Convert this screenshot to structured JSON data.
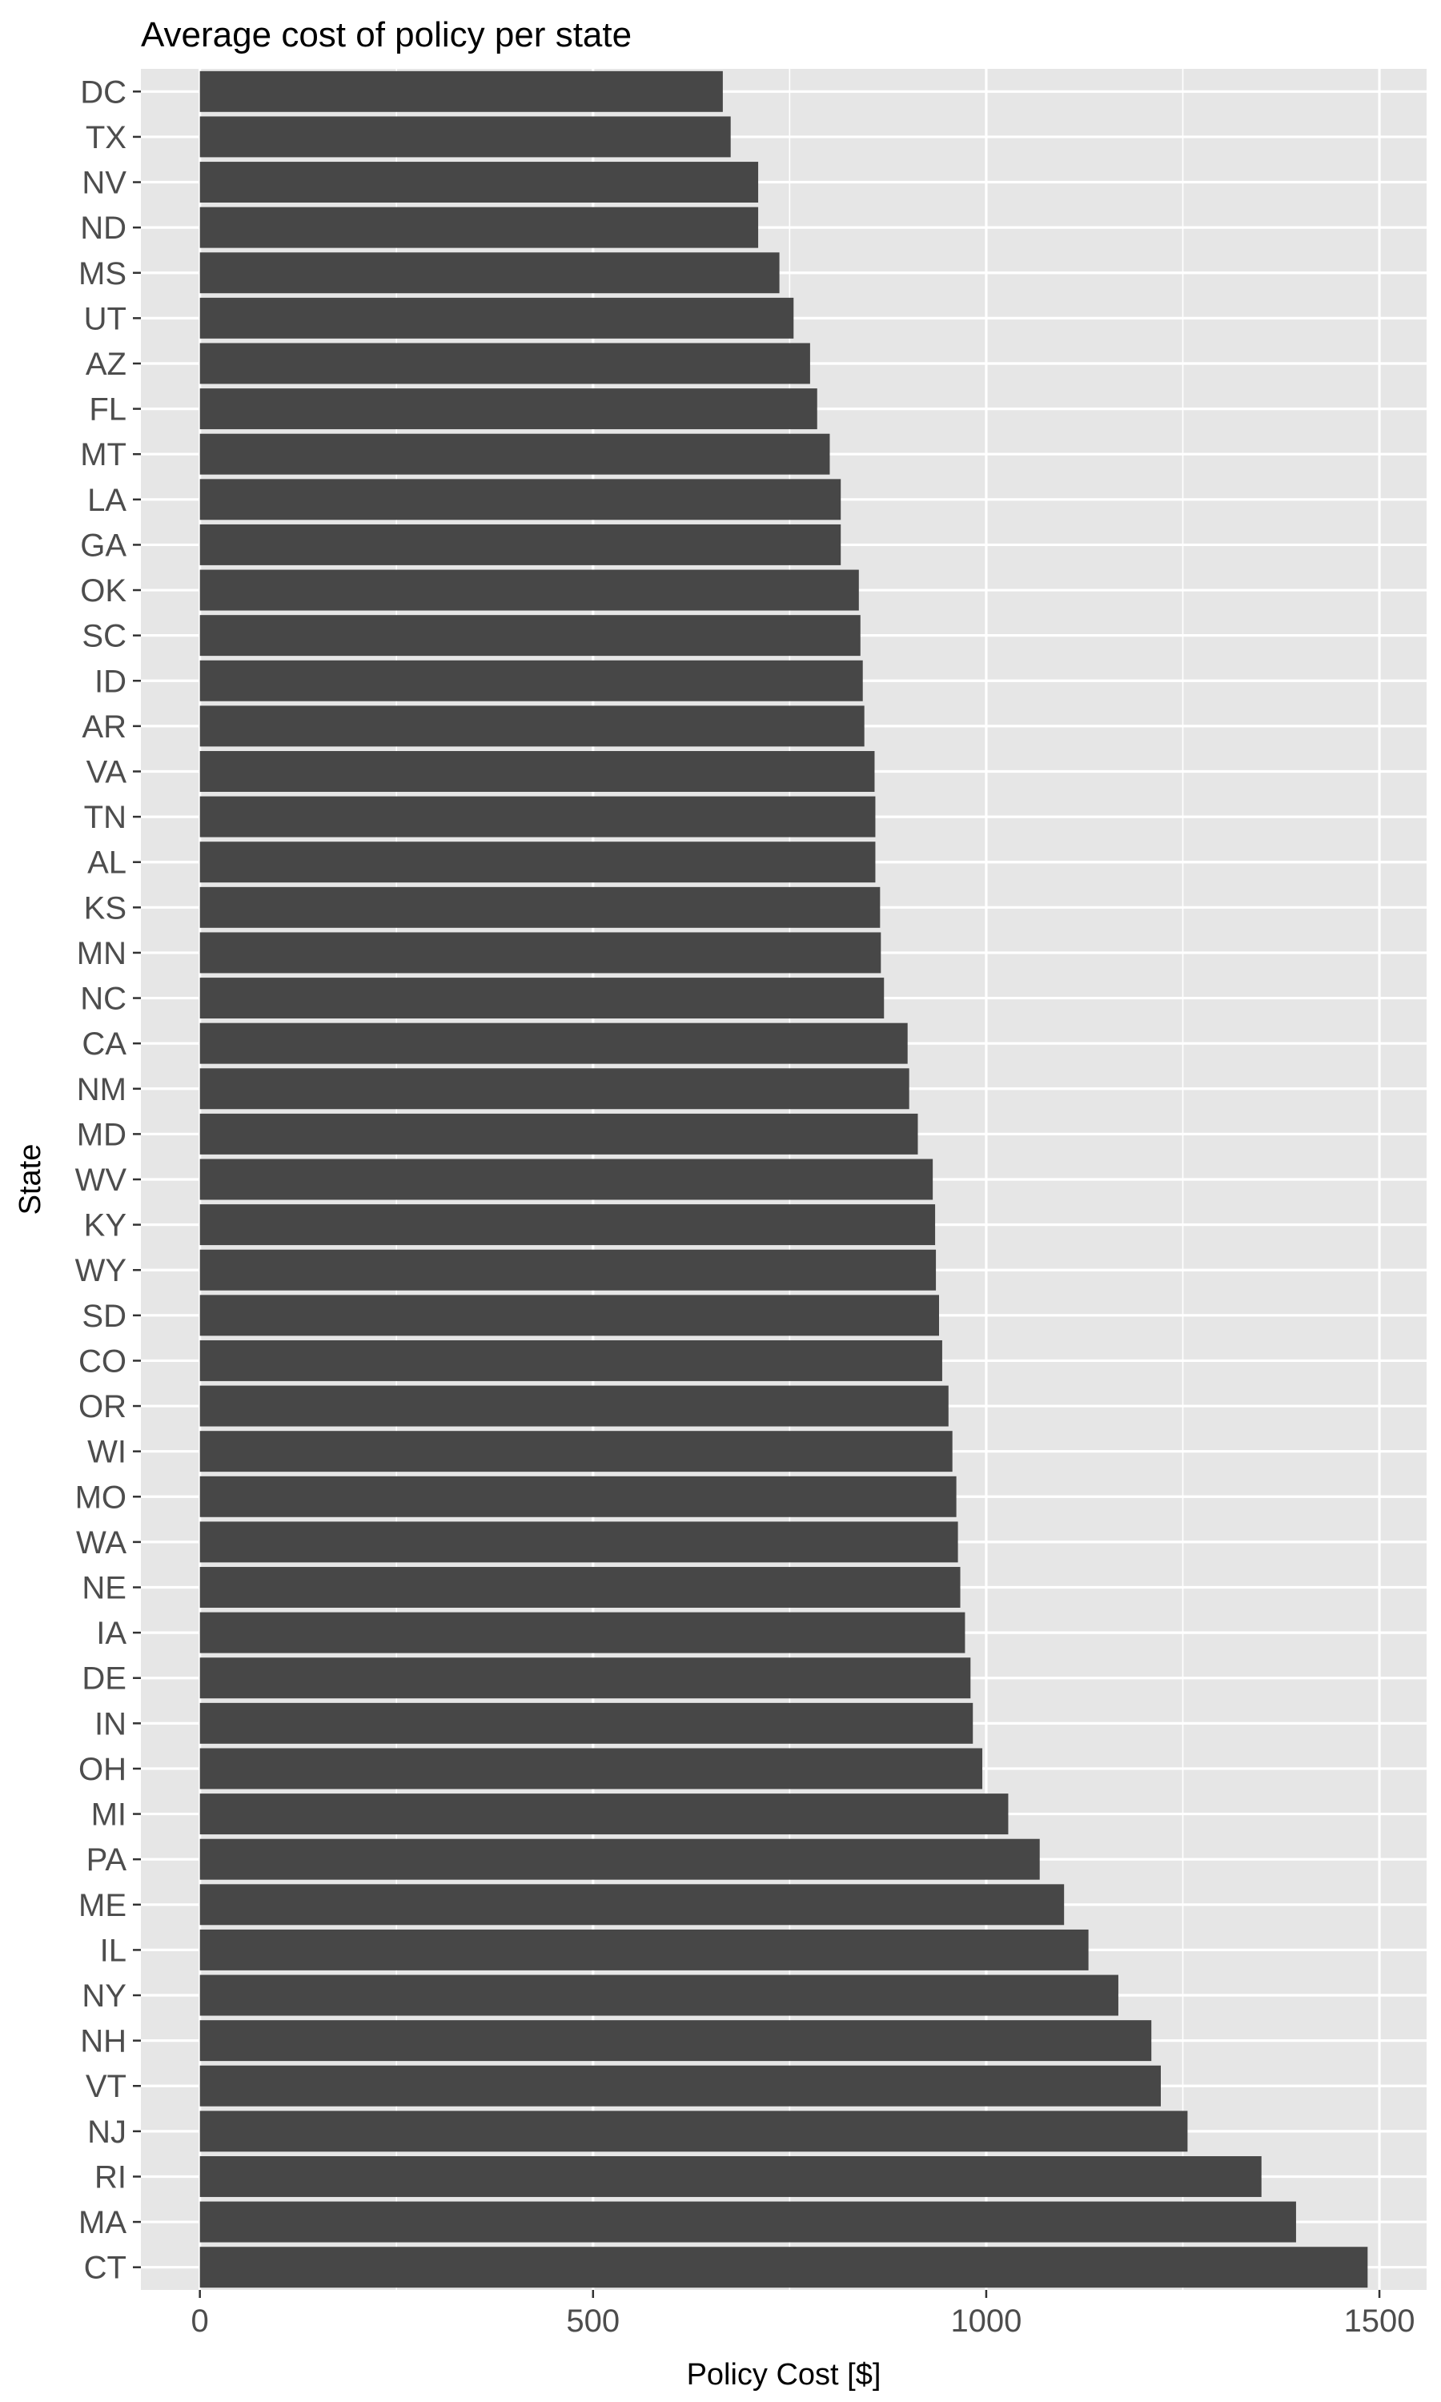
{
  "chart_data": {
    "type": "bar",
    "orientation": "horizontal",
    "title": "Average cost of policy per state",
    "xlabel": "Policy Cost [$]",
    "ylabel": "State",
    "xlim": [
      -75,
      1560
    ],
    "xticks": [
      0,
      500,
      1000,
      1500
    ],
    "xtick_labels": [
      "0",
      "500",
      "1000",
      "1500"
    ],
    "grid": true,
    "colors": {
      "bar": "#474747",
      "panel": "#e6e6e6",
      "grid": "#ffffff",
      "tick": "#4d4d4d"
    },
    "categories": [
      "DC",
      "TX",
      "NV",
      "ND",
      "MS",
      "UT",
      "AZ",
      "FL",
      "MT",
      "LA",
      "GA",
      "OK",
      "SC",
      "ID",
      "AR",
      "VA",
      "TN",
      "AL",
      "KS",
      "MN",
      "NC",
      "CA",
      "NM",
      "MD",
      "WV",
      "KY",
      "WY",
      "SD",
      "CO",
      "OR",
      "WI",
      "MO",
      "WA",
      "NE",
      "IA",
      "DE",
      "IN",
      "OH",
      "MI",
      "PA",
      "ME",
      "IL",
      "NY",
      "NH",
      "VT",
      "NJ",
      "RI",
      "MA",
      "CT"
    ],
    "values": [
      665,
      675,
      710,
      710,
      737,
      755,
      776,
      785,
      801,
      815,
      815,
      838,
      840,
      843,
      845,
      858,
      859,
      859,
      865,
      866,
      870,
      900,
      902,
      913,
      932,
      935,
      936,
      940,
      944,
      952,
      957,
      962,
      964,
      967,
      973,
      980,
      983,
      995,
      1028,
      1068,
      1099,
      1130,
      1168,
      1210,
      1222,
      1256,
      1350,
      1394,
      1485
    ]
  }
}
